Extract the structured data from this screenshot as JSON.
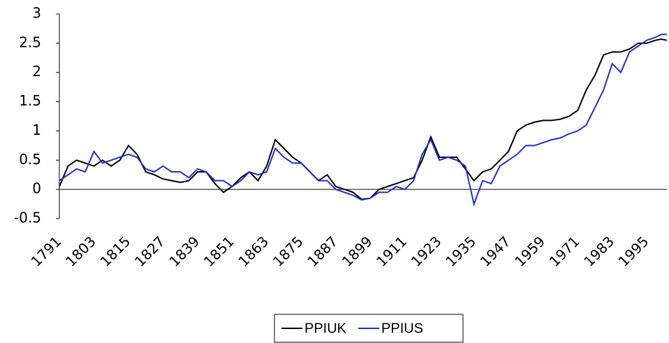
{
  "chart_data": {
    "type": "line",
    "x": [
      1791,
      1794,
      1797,
      1800,
      1803,
      1806,
      1809,
      1812,
      1815,
      1818,
      1821,
      1824,
      1827,
      1830,
      1833,
      1836,
      1839,
      1842,
      1845,
      1848,
      1851,
      1854,
      1857,
      1860,
      1863,
      1866,
      1869,
      1872,
      1875,
      1878,
      1881,
      1884,
      1887,
      1890,
      1893,
      1896,
      1899,
      1902,
      1905,
      1908,
      1911,
      1914,
      1917,
      1920,
      1923,
      1926,
      1929,
      1932,
      1935,
      1938,
      1941,
      1944,
      1947,
      1950,
      1953,
      1956,
      1959,
      1962,
      1965,
      1968,
      1971,
      1974,
      1977,
      1980,
      1983,
      1986,
      1989,
      1992,
      1995,
      1998,
      2000,
      2002
    ],
    "series": [
      {
        "name": "PPIUK",
        "color": "#000000",
        "values": [
          0.05,
          0.4,
          0.5,
          0.45,
          0.4,
          0.5,
          0.4,
          0.5,
          0.75,
          0.6,
          0.3,
          0.25,
          0.18,
          0.15,
          0.12,
          0.15,
          0.3,
          0.3,
          0.1,
          -0.05,
          0.05,
          0.2,
          0.3,
          0.15,
          0.4,
          0.85,
          0.7,
          0.55,
          0.45,
          0.3,
          0.15,
          0.25,
          0.05,
          0.0,
          -0.05,
          -0.17,
          -0.15,
          0.0,
          0.05,
          0.1,
          0.15,
          0.2,
          0.5,
          0.9,
          0.55,
          0.55,
          0.55,
          0.35,
          0.15,
          0.3,
          0.35,
          0.5,
          0.65,
          1.0,
          1.1,
          1.15,
          1.18,
          1.18,
          1.2,
          1.25,
          1.35,
          1.7,
          1.95,
          2.3,
          2.35,
          2.35,
          2.4,
          2.5,
          2.5,
          2.55,
          2.57,
          2.55
        ]
      },
      {
        "name": "PPIUS",
        "color": "#1f2fd6",
        "values": [
          0.15,
          0.25,
          0.35,
          0.3,
          0.65,
          0.45,
          0.5,
          0.55,
          0.6,
          0.55,
          0.35,
          0.3,
          0.4,
          0.3,
          0.3,
          0.2,
          0.35,
          0.3,
          0.15,
          0.15,
          0.05,
          0.15,
          0.3,
          0.25,
          0.3,
          0.7,
          0.55,
          0.45,
          0.45,
          0.3,
          0.15,
          0.15,
          0.0,
          -0.05,
          -0.1,
          -0.18,
          -0.15,
          -0.05,
          -0.05,
          0.05,
          0.0,
          0.15,
          0.6,
          0.85,
          0.5,
          0.55,
          0.5,
          0.4,
          -0.25,
          0.15,
          0.1,
          0.4,
          0.5,
          0.6,
          0.75,
          0.75,
          0.8,
          0.85,
          0.88,
          0.95,
          1.0,
          1.1,
          1.4,
          1.7,
          2.15,
          2.0,
          2.35,
          2.45,
          2.55,
          2.6,
          2.65,
          2.65
        ]
      }
    ],
    "xlim": [
      1791,
      2002
    ],
    "xticks": [
      1791,
      1803,
      1815,
      1827,
      1839,
      1851,
      1863,
      1875,
      1887,
      1899,
      1911,
      1923,
      1935,
      1947,
      1959,
      1971,
      1983,
      1995
    ],
    "ylim": [
      -0.5,
      3
    ],
    "yticks": [
      {
        "value": -0.5,
        "label": "-0.5"
      },
      0,
      0.5,
      1,
      1.5,
      2,
      2.5,
      3
    ],
    "legend": "bottom"
  }
}
